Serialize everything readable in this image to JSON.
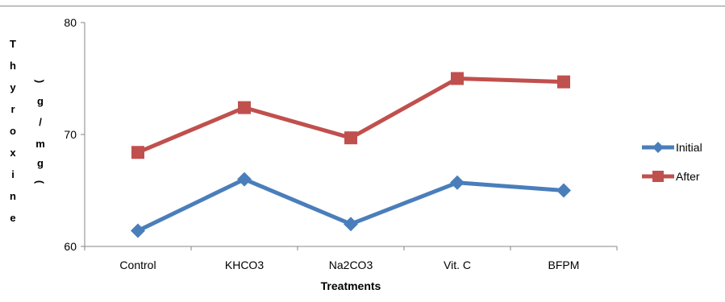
{
  "chart_data": {
    "type": "line",
    "categories": [
      "Control",
      "KHCO3",
      "Na2CO3",
      "Vit. C",
      "BFPM"
    ],
    "series": [
      {
        "name": "Initial",
        "values": [
          61.4,
          66.0,
          62.0,
          65.7,
          65.0
        ],
        "color": "#4a7ebb",
        "marker": "diamond"
      },
      {
        "name": "After",
        "values": [
          68.4,
          72.4,
          69.7,
          75.0,
          74.7
        ],
        "color": "#c0504d",
        "marker": "square"
      }
    ],
    "y_ticks": [
      "60",
      "70",
      "80"
    ],
    "ylim": [
      60,
      80
    ],
    "xlabel": "Treatments",
    "ylabel_col1": "Thyroxine",
    "ylabel_col2": "(g/mg)",
    "grid": false,
    "legend_position": "right"
  }
}
